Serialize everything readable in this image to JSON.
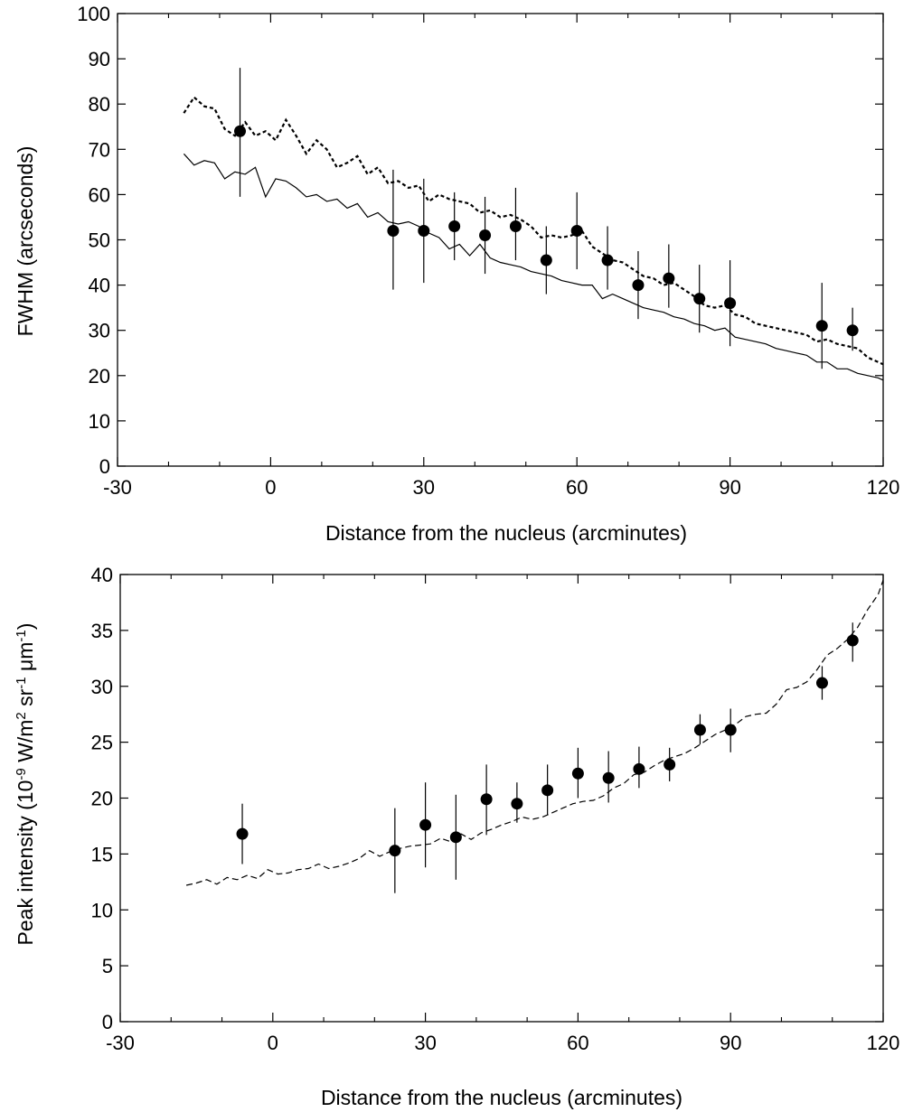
{
  "chart_data": [
    {
      "type": "scatter",
      "xlabel": "Distance from the nucleus (arcminutes)",
      "ylabel": "FWHM (arcseconds)",
      "xlim": [
        -30,
        120
      ],
      "ylim": [
        0,
        100
      ],
      "xticks": [
        -30,
        0,
        30,
        60,
        90,
        120
      ],
      "yticks": [
        0,
        10,
        20,
        30,
        40,
        50,
        60,
        70,
        80,
        90,
        100
      ],
      "xticks_minor": [
        -20,
        -10,
        10,
        20,
        40,
        50,
        70,
        80,
        100,
        110
      ],
      "grid": false,
      "legend": "none",
      "series": [
        {
          "kind": "points-with-error-bars",
          "x": [
            -6,
            24,
            30,
            36,
            42,
            48,
            54,
            60,
            66,
            72,
            78,
            84,
            90,
            108,
            114
          ],
          "y": [
            74,
            52,
            52,
            53,
            51,
            53,
            45.5,
            52,
            45.5,
            40,
            41.5,
            37,
            36,
            31,
            30
          ],
          "err_low": [
            14.5,
            13,
            11.5,
            7.5,
            8.5,
            7.5,
            7.5,
            8.5,
            6.5,
            7.5,
            6.5,
            7.5,
            9.5,
            9.5,
            4.5
          ],
          "err_high": [
            14,
            13.5,
            11.5,
            7.5,
            8.5,
            8.5,
            7.5,
            8.5,
            7.5,
            7.5,
            7.5,
            7.5,
            9.5,
            9.5,
            5
          ],
          "color": "#000000"
        },
        {
          "kind": "line",
          "style": "dotted",
          "x": [
            -17,
            -15,
            -13,
            -11,
            -9,
            -7,
            -5,
            -3,
            -1,
            1,
            3,
            5,
            7,
            9,
            11,
            13,
            15,
            17,
            19,
            21,
            23,
            25,
            27,
            29,
            31,
            33,
            35,
            37,
            39,
            41,
            43,
            45,
            47,
            49,
            51,
            53,
            55,
            57,
            59,
            61,
            63,
            65,
            67,
            69,
            71,
            73,
            75,
            77,
            79,
            81,
            83,
            85,
            87,
            89,
            91,
            93,
            95,
            97,
            99,
            101,
            103,
            105,
            107,
            109,
            111,
            113,
            115,
            117,
            119,
            120
          ],
          "y": [
            78,
            81.5,
            79.5,
            79,
            74.5,
            73,
            76,
            73,
            74,
            72,
            76.5,
            73,
            69,
            72,
            70,
            66,
            67,
            68.5,
            64.5,
            66,
            62.5,
            63,
            61.5,
            62,
            58.5,
            60,
            59,
            58.5,
            58,
            56,
            56.5,
            55,
            55.5,
            54.5,
            53,
            50.5,
            51,
            50.5,
            51,
            52,
            48.5,
            47,
            45.5,
            45,
            43.5,
            42,
            41.5,
            40,
            40.5,
            39,
            37.5,
            35.5,
            35,
            35.5,
            33.5,
            33,
            31.5,
            31,
            30.5,
            30,
            29.5,
            29,
            27.5,
            28,
            27,
            26.5,
            26,
            24,
            23,
            22.5
          ],
          "color": "#000000"
        },
        {
          "kind": "line",
          "style": "solid",
          "x": [
            -17,
            -15,
            -13,
            -11,
            -9,
            -7,
            -5,
            -3,
            -1,
            1,
            3,
            5,
            7,
            9,
            11,
            13,
            15,
            17,
            19,
            21,
            23,
            25,
            27,
            29,
            31,
            33,
            35,
            37,
            39,
            41,
            43,
            45,
            47,
            49,
            51,
            53,
            55,
            57,
            59,
            61,
            63,
            65,
            67,
            69,
            71,
            73,
            75,
            77,
            79,
            81,
            83,
            85,
            87,
            89,
            91,
            93,
            95,
            97,
            99,
            101,
            103,
            105,
            107,
            109,
            111,
            113,
            115,
            117,
            119,
            120
          ],
          "y": [
            69,
            66.5,
            67.5,
            67,
            63.5,
            65,
            64.5,
            66,
            59.5,
            63.5,
            63,
            61.5,
            59.5,
            60,
            58.5,
            59,
            57,
            58,
            55,
            56,
            54,
            53.5,
            54,
            53,
            51.5,
            50.5,
            48,
            49,
            46.5,
            49,
            46,
            45,
            44.5,
            44,
            43,
            42.5,
            42,
            41,
            40.5,
            40,
            40,
            37,
            38,
            37,
            36,
            35,
            34.5,
            34,
            33,
            32.5,
            31.5,
            31,
            30,
            30.5,
            28.5,
            28,
            27.5,
            27,
            26,
            25.5,
            25,
            24.5,
            23,
            23,
            21.5,
            21.5,
            20.5,
            20,
            19.5,
            19
          ],
          "color": "#000000"
        }
      ]
    },
    {
      "type": "scatter",
      "xlabel": "Distance from the nucleus (arcminutes)",
      "ylabel_parts": [
        "Peak intensity (10",
        "-9",
        " W/m",
        "2",
        " sr",
        "-1",
        " μm",
        "-1",
        ")"
      ],
      "xlim": [
        -30,
        120
      ],
      "ylim": [
        0,
        40
      ],
      "xticks": [
        -30,
        0,
        30,
        60,
        90,
        120
      ],
      "yticks": [
        0,
        5,
        10,
        15,
        20,
        25,
        30,
        35,
        40
      ],
      "xticks_minor": [
        -20,
        -10,
        10,
        20,
        40,
        50,
        70,
        80,
        100,
        110
      ],
      "grid": false,
      "legend": "none",
      "series": [
        {
          "kind": "points-with-error-bars",
          "x": [
            -6,
            24,
            30,
            36,
            42,
            48,
            54,
            60,
            66,
            72,
            78,
            84,
            90,
            108,
            114
          ],
          "y": [
            16.8,
            15.3,
            17.6,
            16.5,
            19.9,
            19.5,
            20.7,
            22.2,
            21.8,
            22.6,
            23,
            26.1,
            26.1,
            30.3,
            34.1
          ],
          "err_low": [
            2.7,
            3.8,
            3.8,
            3.8,
            3.2,
            1.7,
            2.2,
            2.2,
            2.2,
            1.7,
            1.5,
            1.3,
            2,
            1.5,
            1.9
          ],
          "err_high": [
            2.7,
            3.8,
            3.8,
            3.8,
            3.1,
            1.9,
            2.3,
            2.3,
            2.4,
            2,
            1.5,
            1.4,
            1.9,
            1.5,
            1.6
          ],
          "color": "#000000"
        },
        {
          "kind": "line",
          "style": "dashed",
          "x": [
            -17,
            -15,
            -13,
            -11,
            -9,
            -7,
            -5,
            -3,
            -1,
            1,
            3,
            5,
            7,
            9,
            11,
            13,
            15,
            17,
            19,
            21,
            23,
            25,
            27,
            29,
            31,
            33,
            35,
            37,
            39,
            41,
            43,
            45,
            47,
            49,
            51,
            53,
            55,
            57,
            59,
            61,
            63,
            65,
            67,
            69,
            71,
            73,
            75,
            77,
            79,
            81,
            83,
            85,
            87,
            89,
            91,
            93,
            95,
            97,
            99,
            101,
            103,
            105,
            107,
            109,
            111,
            113,
            115,
            117,
            119,
            120
          ],
          "y": [
            12.2,
            12.4,
            12.7,
            12.3,
            12.9,
            12.7,
            13.1,
            12.8,
            13.6,
            13.2,
            13.3,
            13.6,
            13.7,
            14.1,
            13.7,
            13.9,
            14.2,
            14.6,
            15.3,
            14.8,
            15.2,
            15.5,
            15.7,
            15.8,
            15.9,
            16.4,
            16.1,
            16.8,
            16.3,
            16.9,
            17.2,
            17.6,
            17.9,
            18.3,
            18.1,
            18.3,
            18.7,
            19.1,
            19.5,
            19.7,
            19.8,
            20.2,
            20.9,
            21.3,
            22.1,
            22.3,
            22.9,
            23.4,
            23.7,
            24,
            24.5,
            25.1,
            25.7,
            26.1,
            26.6,
            27.3,
            27.5,
            27.6,
            28.4,
            29.7,
            29.9,
            30.4,
            31.5,
            32.8,
            33.4,
            34.2,
            35.3,
            36.9,
            38.2,
            39.5
          ],
          "color": "#000000"
        }
      ]
    }
  ]
}
